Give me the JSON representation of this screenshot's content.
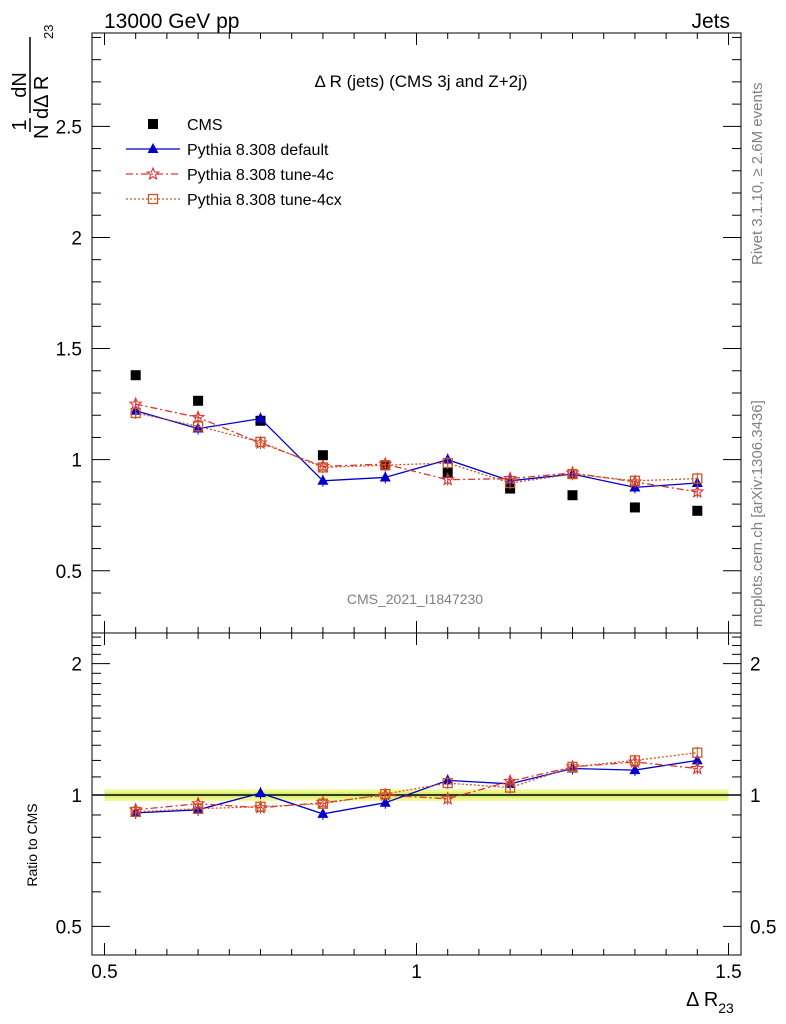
{
  "header": {
    "left": "13000 GeV pp",
    "right": "Jets"
  },
  "plot_title": "Δ R (jets) (CMS 3j and Z+2j)",
  "watermark": "CMS_2021_I1847230",
  "side_labels": {
    "rivet": "Rivet 3.1.10, ≥ 2.6M events",
    "mcplots": "mcplots.cern.ch [arXiv:1306.3436]"
  },
  "axes": {
    "ylabel_top_num": "1",
    "ylabel_top_frac_num": "dN",
    "ylabel_top_frac_den": "N dΔ R",
    "ylabel_top_sub": "23",
    "ylabel_bottom": "Ratio to CMS",
    "xlabel": "Δ R",
    "xlabel_sub": "23"
  },
  "legend": [
    {
      "label": "CMS",
      "color": "#000000",
      "marker": "square-filled",
      "line": "none"
    },
    {
      "label": "Pythia 8.308 default",
      "color": "#0000cc",
      "marker": "triangle-filled",
      "line": "solid"
    },
    {
      "label": "Pythia 8.308 tune-4c",
      "color": "#dd3333",
      "marker": "star-open",
      "line": "dashdot"
    },
    {
      "label": "Pythia 8.308 tune-4cx",
      "color": "#cc5522",
      "marker": "square-open",
      "line": "dotted"
    }
  ],
  "chart_data": {
    "type": "scatter",
    "x": [
      0.55,
      0.65,
      0.75,
      0.85,
      0.95,
      1.05,
      1.15,
      1.25,
      1.35,
      1.45
    ],
    "xlim": [
      0.48,
      1.52
    ],
    "xticks": [
      "0.5",
      "1",
      "1.5"
    ],
    "main_ylim": [
      0.22,
      2.92
    ],
    "main_yticks": [
      "0.5",
      "1",
      "1.5",
      "2",
      "2.5"
    ],
    "ratio_ylim": [
      0.43,
      2.35
    ],
    "ratio_yticks": [
      "0.5",
      "1",
      "2"
    ],
    "series": [
      {
        "name": "CMS",
        "values": [
          1.38,
          1.265,
          1.175,
          1.02,
          0.975,
          0.94,
          0.87,
          0.84,
          0.785,
          0.77
        ]
      },
      {
        "name": "Pythia 8.308 default",
        "values": [
          1.22,
          1.14,
          1.185,
          0.905,
          0.92,
          1.0,
          0.905,
          0.935,
          0.875,
          0.895
        ]
      },
      {
        "name": "Pythia 8.308 tune-4c",
        "values": [
          1.25,
          1.19,
          1.075,
          0.97,
          0.98,
          0.91,
          0.915,
          0.94,
          0.9,
          0.855
        ]
      },
      {
        "name": "Pythia 8.308 tune-4cx",
        "values": [
          1.21,
          1.15,
          1.08,
          0.965,
          0.975,
          0.985,
          0.895,
          0.935,
          0.905,
          0.915
        ]
      }
    ],
    "ratio_series": [
      {
        "name": "Pythia 8.308 default",
        "values": [
          0.91,
          0.925,
          1.01,
          0.905,
          0.96,
          1.08,
          1.06,
          1.15,
          1.14,
          1.2
        ]
      },
      {
        "name": "Pythia 8.308 tune-4c",
        "values": [
          0.925,
          0.955,
          0.935,
          0.96,
          1.0,
          0.98,
          1.075,
          1.16,
          1.19,
          1.15
        ]
      },
      {
        "name": "Pythia 8.308 tune-4cx",
        "values": [
          0.915,
          0.93,
          0.94,
          0.955,
          1.005,
          1.065,
          1.04,
          1.16,
          1.2,
          1.25
        ]
      }
    ],
    "grid": false,
    "legend_position": "top-left"
  }
}
